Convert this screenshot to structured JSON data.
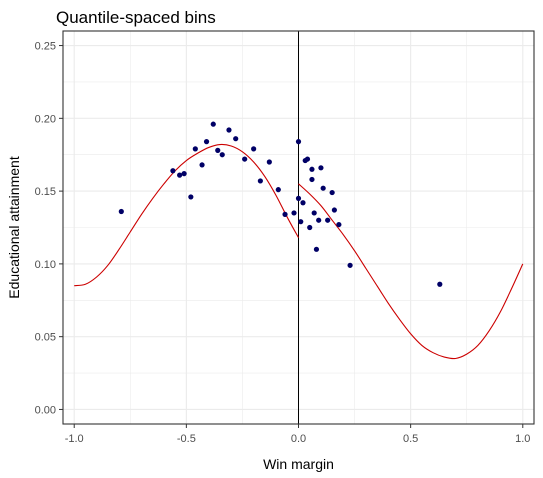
{
  "chart_data": {
    "type": "scatter",
    "title": "Quantile-spaced bins",
    "xlabel": "Win margin",
    "ylabel": "Educational attainment",
    "xlim": [
      -1.05,
      1.05
    ],
    "ylim": [
      -0.01,
      0.26
    ],
    "x_ticks": [
      -1.0,
      -0.5,
      0.0,
      0.5,
      1.0
    ],
    "x_tick_labels": [
      "-1.0",
      "-0.5",
      "0.0",
      "0.5",
      "1.0"
    ],
    "y_ticks": [
      0.0,
      0.05,
      0.1,
      0.15,
      0.2,
      0.25
    ],
    "y_tick_labels": [
      "0.00",
      "0.05",
      "0.10",
      "0.15",
      "0.20",
      "0.25"
    ],
    "grid": true,
    "cutoff_x": 0.0,
    "colors": {
      "points": "#000066",
      "fit": "#cc0000",
      "cutoff": "#000000",
      "grid": "#ebebeb",
      "border": "#333333"
    },
    "points": [
      {
        "x": -0.79,
        "y": 0.136
      },
      {
        "x": -0.56,
        "y": 0.164
      },
      {
        "x": -0.53,
        "y": 0.161
      },
      {
        "x": -0.51,
        "y": 0.162
      },
      {
        "x": -0.48,
        "y": 0.146
      },
      {
        "x": -0.46,
        "y": 0.179
      },
      {
        "x": -0.43,
        "y": 0.168
      },
      {
        "x": -0.41,
        "y": 0.184
      },
      {
        "x": -0.38,
        "y": 0.196
      },
      {
        "x": -0.36,
        "y": 0.178
      },
      {
        "x": -0.34,
        "y": 0.175
      },
      {
        "x": -0.31,
        "y": 0.192
      },
      {
        "x": -0.28,
        "y": 0.186
      },
      {
        "x": -0.24,
        "y": 0.172
      },
      {
        "x": -0.2,
        "y": 0.179
      },
      {
        "x": -0.17,
        "y": 0.157
      },
      {
        "x": -0.13,
        "y": 0.17
      },
      {
        "x": -0.09,
        "y": 0.151
      },
      {
        "x": -0.06,
        "y": 0.134
      },
      {
        "x": -0.02,
        "y": 0.135
      },
      {
        "x": 0.0,
        "y": 0.184
      },
      {
        "x": 0.0,
        "y": 0.145
      },
      {
        "x": 0.01,
        "y": 0.129
      },
      {
        "x": 0.02,
        "y": 0.142
      },
      {
        "x": 0.03,
        "y": 0.171
      },
      {
        "x": 0.04,
        "y": 0.172
      },
      {
        "x": 0.05,
        "y": 0.125
      },
      {
        "x": 0.06,
        "y": 0.158
      },
      {
        "x": 0.06,
        "y": 0.165
      },
      {
        "x": 0.07,
        "y": 0.135
      },
      {
        "x": 0.08,
        "y": 0.11
      },
      {
        "x": 0.09,
        "y": 0.13
      },
      {
        "x": 0.1,
        "y": 0.166
      },
      {
        "x": 0.11,
        "y": 0.152
      },
      {
        "x": 0.13,
        "y": 0.13
      },
      {
        "x": 0.15,
        "y": 0.149
      },
      {
        "x": 0.16,
        "y": 0.137
      },
      {
        "x": 0.18,
        "y": 0.127
      },
      {
        "x": 0.23,
        "y": 0.099
      },
      {
        "x": 0.63,
        "y": 0.086
      }
    ],
    "fit_left": [
      {
        "x": -1.0,
        "y": 0.085
      },
      {
        "x": -0.95,
        "y": 0.086
      },
      {
        "x": -0.9,
        "y": 0.091
      },
      {
        "x": -0.85,
        "y": 0.099
      },
      {
        "x": -0.8,
        "y": 0.11
      },
      {
        "x": -0.75,
        "y": 0.122
      },
      {
        "x": -0.7,
        "y": 0.134
      },
      {
        "x": -0.65,
        "y": 0.145
      },
      {
        "x": -0.6,
        "y": 0.155
      },
      {
        "x": -0.55,
        "y": 0.164
      },
      {
        "x": -0.5,
        "y": 0.171
      },
      {
        "x": -0.45,
        "y": 0.176
      },
      {
        "x": -0.4,
        "y": 0.18
      },
      {
        "x": -0.35,
        "y": 0.182
      },
      {
        "x": -0.3,
        "y": 0.181
      },
      {
        "x": -0.25,
        "y": 0.177
      },
      {
        "x": -0.2,
        "y": 0.17
      },
      {
        "x": -0.15,
        "y": 0.16
      },
      {
        "x": -0.1,
        "y": 0.147
      },
      {
        "x": -0.05,
        "y": 0.132
      },
      {
        "x": 0.0,
        "y": 0.118
      }
    ],
    "fit_right": [
      {
        "x": 0.0,
        "y": 0.155
      },
      {
        "x": 0.05,
        "y": 0.148
      },
      {
        "x": 0.1,
        "y": 0.14
      },
      {
        "x": 0.15,
        "y": 0.13
      },
      {
        "x": 0.2,
        "y": 0.12
      },
      {
        "x": 0.25,
        "y": 0.109
      },
      {
        "x": 0.3,
        "y": 0.097
      },
      {
        "x": 0.35,
        "y": 0.085
      },
      {
        "x": 0.4,
        "y": 0.073
      },
      {
        "x": 0.45,
        "y": 0.062
      },
      {
        "x": 0.5,
        "y": 0.052
      },
      {
        "x": 0.55,
        "y": 0.044
      },
      {
        "x": 0.6,
        "y": 0.039
      },
      {
        "x": 0.65,
        "y": 0.036
      },
      {
        "x": 0.7,
        "y": 0.035
      },
      {
        "x": 0.75,
        "y": 0.038
      },
      {
        "x": 0.8,
        "y": 0.044
      },
      {
        "x": 0.85,
        "y": 0.054
      },
      {
        "x": 0.9,
        "y": 0.067
      },
      {
        "x": 0.95,
        "y": 0.083
      },
      {
        "x": 1.0,
        "y": 0.1
      }
    ]
  }
}
